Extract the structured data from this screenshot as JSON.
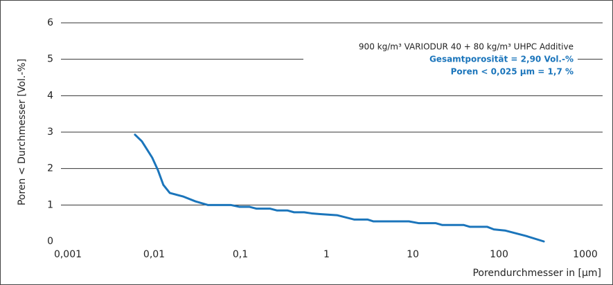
{
  "chart_data": {
    "type": "line",
    "xlabel": "Porendurchmesser in [µm]",
    "ylabel": "Poren < Durchmesser [Vol.-%]",
    "xscale": "log",
    "xlim": [
      0.001,
      1000
    ],
    "ylim": [
      0,
      6
    ],
    "xticks": [
      {
        "value": 0.001,
        "label": "0,001"
      },
      {
        "value": 0.01,
        "label": "0,01"
      },
      {
        "value": 0.1,
        "label": "0,1"
      },
      1,
      10,
      100,
      1000
    ],
    "yticks": [
      0,
      1,
      2,
      3,
      4,
      5,
      6
    ],
    "grid": true,
    "annotations": [
      "900 kg/m³ VARIODUR 40 + 80 kg/m³ UHPC Additive",
      "Gesamtporosität = 2,90 Vol.-%",
      "Poren < 0,025 µm = 1,7 %"
    ],
    "x": [
      0.006,
      0.0072,
      0.0084,
      0.0095,
      0.0111,
      0.0128,
      0.0152,
      0.0219,
      0.0301,
      0.0419,
      0.0773,
      0.097,
      0.127,
      0.153,
      0.22,
      0.265,
      0.35,
      0.42,
      0.55,
      0.67,
      0.84,
      1.32,
      2.1,
      3.0,
      3.5,
      9.0,
      11.8,
      18.5,
      22,
      39,
      46,
      73,
      87,
      117,
      205,
      330
    ],
    "series": [
      {
        "color": "#1b75bb",
        "values": [
          2.93,
          2.75,
          2.5,
          2.3,
          1.95,
          1.55,
          1.33,
          1.23,
          1.1,
          1.0,
          1.0,
          0.95,
          0.95,
          0.9,
          0.9,
          0.85,
          0.85,
          0.8,
          0.8,
          0.77,
          0.75,
          0.72,
          0.6,
          0.6,
          0.55,
          0.55,
          0.5,
          0.5,
          0.45,
          0.45,
          0.4,
          0.4,
          0.33,
          0.3,
          0.15,
          0
        ]
      }
    ]
  }
}
